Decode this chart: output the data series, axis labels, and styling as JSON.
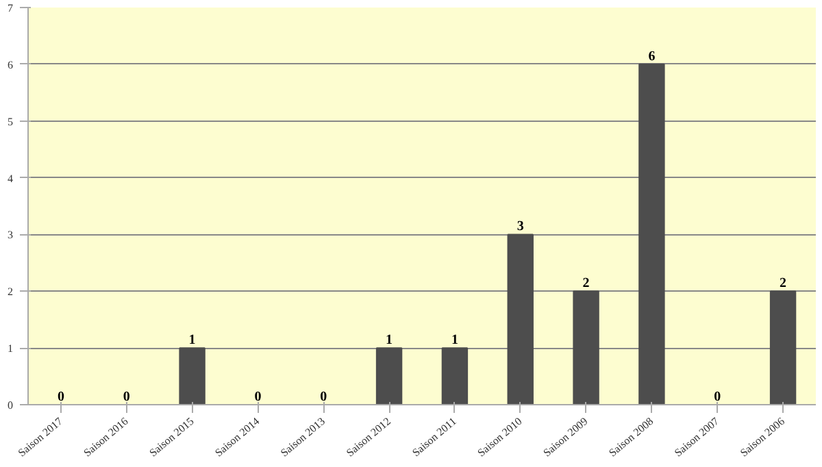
{
  "chart_data": {
    "type": "bar",
    "categories": [
      "Saison 2017",
      "Saison 2016",
      "Saison 2015",
      "Saison 2014",
      "Saison 2013",
      "Saison 2012",
      "Saison 2011",
      "Saison 2010",
      "Saison 2009",
      "Saison 2008",
      "Saison 2007",
      "Saison 2006"
    ],
    "values": [
      0,
      0,
      1,
      0,
      0,
      1,
      1,
      3,
      2,
      6,
      0,
      2
    ],
    "color": "#4d4d4d",
    "ylim": [
      0,
      7
    ],
    "yticks": [
      0,
      1,
      2,
      3,
      4,
      5,
      6,
      7
    ],
    "grid": "y",
    "data_labels": true
  }
}
